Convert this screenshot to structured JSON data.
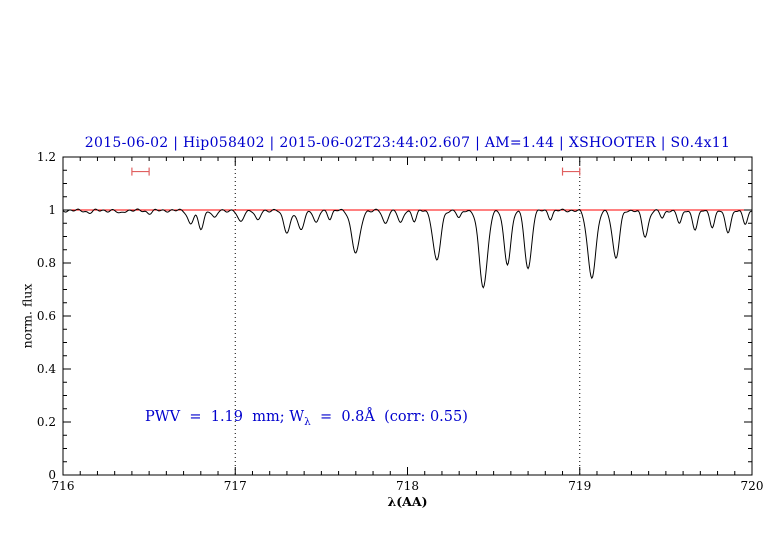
{
  "title": "2015-06-02 | Hip058402 | 2015-06-02T23:44:02.607 | AM=1.44 | XSHOOTER | S0.4x11",
  "annotation": {
    "pre": "PWV  =  1.19  mm; W",
    "sub": "λ",
    "post": "  =  0.8Å  (corr: 0.55)"
  },
  "colors": {
    "title": "#0000cd",
    "annotation": "#0000cd",
    "spectrum": "#000000",
    "continuum": "#ff0000",
    "marker": "#e06060",
    "axis": "#000000",
    "background": "#ffffff"
  },
  "chart_data": {
    "type": "line",
    "title": "2015-06-02 | Hip058402 | 2015-06-02T23:44:02.607 | AM=1.44 | XSHOOTER | S0.4x11",
    "xlabel": "λ(AA)",
    "ylabel": "norm. flux",
    "xlim": [
      716,
      720
    ],
    "ylim": [
      0,
      1.2
    ],
    "x_ticks": [
      716,
      717,
      718,
      719,
      720
    ],
    "x_tick_labels": [
      "716",
      "717",
      "718",
      "719",
      "720"
    ],
    "y_ticks": [
      0,
      0.2,
      0.4,
      0.6,
      0.8,
      1,
      1.2
    ],
    "y_tick_labels": [
      "0",
      "0.2",
      "0.4",
      "0.6",
      "0.8",
      "1",
      "1.2"
    ],
    "x_minor_step": 0.1,
    "y_minor_step": 0.05,
    "grid": false,
    "legend": false,
    "continuum_level": 1.0,
    "dotted_vlines": [
      717,
      719
    ],
    "range_markers": [
      {
        "x": 716.45,
        "y": 1.145,
        "halfwidth": 0.05
      },
      {
        "x": 718.95,
        "y": 1.145,
        "halfwidth": 0.05
      }
    ],
    "series": [
      {
        "name": "observed normalized telluric spectrum",
        "color": "#000000"
      },
      {
        "name": "continuum fit",
        "color": "#ff0000",
        "value": 1.0
      }
    ],
    "annotation_text": "PWV = 1.19 mm; Wλ = 0.8Å (corr: 0.55)",
    "absorption_lines": [
      {
        "center": 716.15,
        "depth": 0.008,
        "sigma": 0.015
      },
      {
        "center": 716.33,
        "depth": 0.012,
        "sigma": 0.014
      },
      {
        "center": 716.5,
        "depth": 0.01,
        "sigma": 0.015
      },
      {
        "center": 716.74,
        "depth": 0.05,
        "sigma": 0.016
      },
      {
        "center": 716.8,
        "depth": 0.07,
        "sigma": 0.016
      },
      {
        "center": 716.88,
        "depth": 0.03,
        "sigma": 0.013
      },
      {
        "center": 717.03,
        "depth": 0.045,
        "sigma": 0.016
      },
      {
        "center": 717.13,
        "depth": 0.04,
        "sigma": 0.014
      },
      {
        "center": 717.3,
        "depth": 0.08,
        "sigma": 0.02
      },
      {
        "center": 717.38,
        "depth": 0.075,
        "sigma": 0.018
      },
      {
        "center": 717.47,
        "depth": 0.05,
        "sigma": 0.014
      },
      {
        "center": 717.55,
        "depth": 0.03,
        "sigma": 0.012
      },
      {
        "center": 717.7,
        "depth": 0.16,
        "sigma": 0.024
      },
      {
        "center": 717.87,
        "depth": 0.05,
        "sigma": 0.015
      },
      {
        "center": 717.96,
        "depth": 0.05,
        "sigma": 0.014
      },
      {
        "center": 718.04,
        "depth": 0.04,
        "sigma": 0.013
      },
      {
        "center": 718.17,
        "depth": 0.19,
        "sigma": 0.022
      },
      {
        "center": 718.3,
        "depth": 0.03,
        "sigma": 0.012
      },
      {
        "center": 718.44,
        "depth": 0.29,
        "sigma": 0.024
      },
      {
        "center": 718.58,
        "depth": 0.2,
        "sigma": 0.02
      },
      {
        "center": 718.7,
        "depth": 0.22,
        "sigma": 0.02
      },
      {
        "center": 718.83,
        "depth": 0.03,
        "sigma": 0.012
      },
      {
        "center": 719.07,
        "depth": 0.25,
        "sigma": 0.024
      },
      {
        "center": 719.21,
        "depth": 0.18,
        "sigma": 0.02
      },
      {
        "center": 719.38,
        "depth": 0.1,
        "sigma": 0.017
      },
      {
        "center": 719.48,
        "depth": 0.03,
        "sigma": 0.012
      },
      {
        "center": 719.58,
        "depth": 0.05,
        "sigma": 0.013
      },
      {
        "center": 719.67,
        "depth": 0.07,
        "sigma": 0.015
      },
      {
        "center": 719.77,
        "depth": 0.06,
        "sigma": 0.014
      },
      {
        "center": 719.86,
        "depth": 0.08,
        "sigma": 0.016
      },
      {
        "center": 719.96,
        "depth": 0.05,
        "sigma": 0.014
      }
    ]
  }
}
